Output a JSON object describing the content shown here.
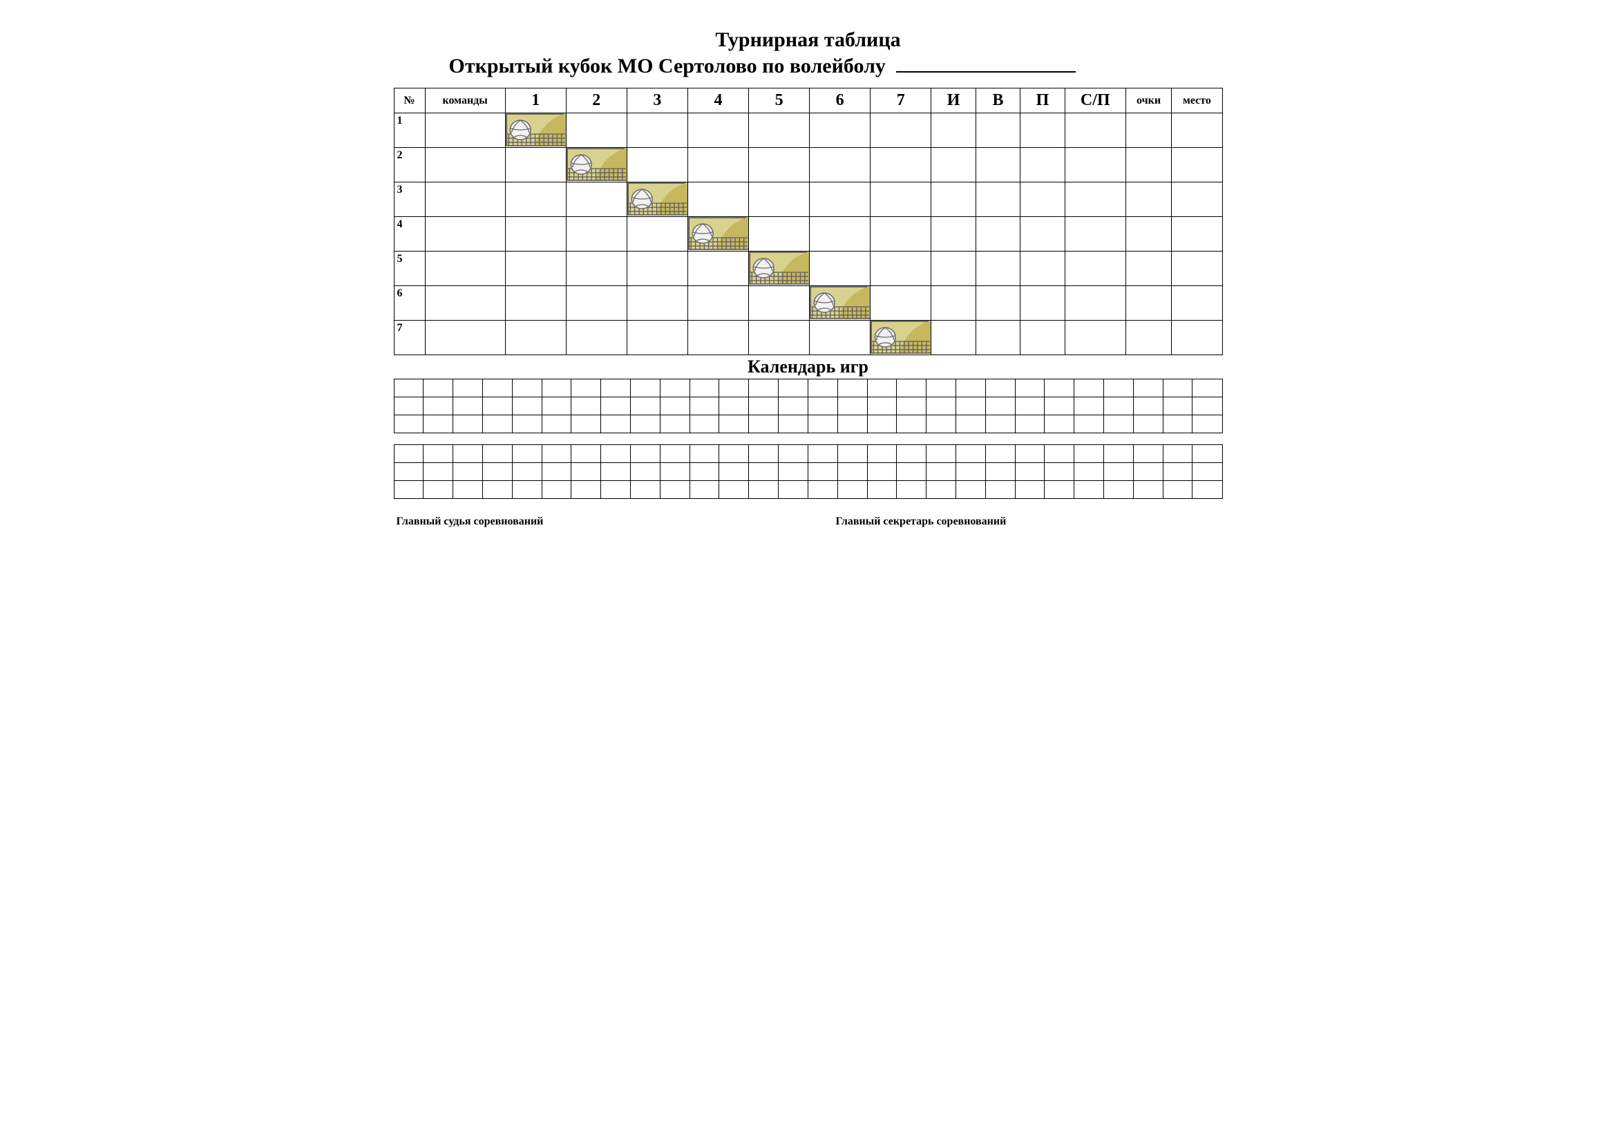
{
  "title": {
    "main": "Турнирная таблица",
    "sub_prefix": "Открытый кубок МО Сертолово по волейболу"
  },
  "standings": {
    "headers": {
      "num": "№",
      "teams": "команды",
      "opponents": [
        "1",
        "2",
        "3",
        "4",
        "5",
        "6",
        "7"
      ],
      "games": "И",
      "wins": "В",
      "losses": "П",
      "sets": "С/П",
      "points": "очки",
      "place": "место"
    },
    "rows": [
      {
        "num": "1"
      },
      {
        "num": "2"
      },
      {
        "num": "3"
      },
      {
        "num": "4"
      },
      {
        "num": "5"
      },
      {
        "num": "6"
      },
      {
        "num": "7"
      }
    ],
    "icon": {
      "bg_top": "#d8d28e",
      "bg_sun": "#c7b85f",
      "net": "#5a5a5a",
      "ball_fill": "#f2f2f2",
      "ball_line": "#6a6a6a",
      "border": "#000000"
    }
  },
  "calendar": {
    "title": "Календарь игр",
    "blocks": [
      {
        "rows": 3,
        "cols": 28
      },
      {
        "rows": 3,
        "cols": 28
      }
    ]
  },
  "signatures": {
    "judge": "Главный судья  соревнований",
    "secretary": "Главный секретарь соревнований"
  }
}
